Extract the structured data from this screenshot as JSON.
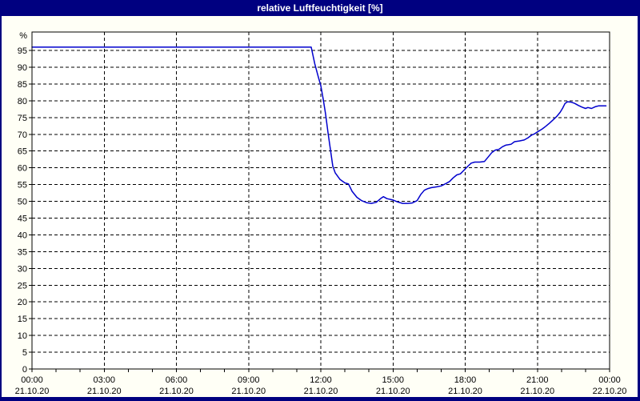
{
  "window": {
    "title": "relative Luftfeuchtigkeit [%]"
  },
  "colors": {
    "frame_background": "#000080",
    "title_text": "#ffffff",
    "panel_background": "#fffff6",
    "plot_background": "#ffffff",
    "grid_and_axis": "#000000",
    "series_line": "#0000cd"
  },
  "chart_data": {
    "type": "line",
    "title": "relative Luftfeuchtigkeit [%]",
    "ylabel": "%",
    "xlabel": "",
    "ylim": [
      0,
      100.5
    ],
    "x_range_hours": [
      0,
      24
    ],
    "grid": "dashed",
    "legend": "none",
    "y_ticks": [
      0,
      5,
      10,
      15,
      20,
      25,
      30,
      35,
      40,
      45,
      50,
      55,
      60,
      65,
      70,
      75,
      80,
      85,
      90,
      95
    ],
    "minor_x_tick_every_hours": 1,
    "x_ticks": [
      {
        "hour": 0,
        "time": "00:00",
        "date": "21.10.20"
      },
      {
        "hour": 3,
        "time": "03:00",
        "date": "21.10.20"
      },
      {
        "hour": 6,
        "time": "06:00",
        "date": "21.10.20"
      },
      {
        "hour": 9,
        "time": "09:00",
        "date": "21.10.20"
      },
      {
        "hour": 12,
        "time": "12:00",
        "date": "21.10.20"
      },
      {
        "hour": 15,
        "time": "15:00",
        "date": "21.10.20"
      },
      {
        "hour": 18,
        "time": "18:00",
        "date": "21.10.20"
      },
      {
        "hour": 21,
        "time": "21:00",
        "date": "21.10.20"
      },
      {
        "hour": 24,
        "time": "00:00",
        "date": "22.10.20"
      }
    ],
    "series": [
      {
        "name": "relative Luftfeuchtigkeit",
        "color": "#0000cd",
        "points": [
          [
            0,
            96
          ],
          [
            1,
            96
          ],
          [
            2,
            96
          ],
          [
            3,
            96
          ],
          [
            4,
            96
          ],
          [
            5,
            96
          ],
          [
            6,
            96
          ],
          [
            7,
            96
          ],
          [
            8,
            96
          ],
          [
            9,
            96
          ],
          [
            10,
            96
          ],
          [
            11,
            96
          ],
          [
            11.6,
            96
          ],
          [
            11.75,
            91
          ],
          [
            11.9,
            87
          ],
          [
            12.0,
            84.5
          ],
          [
            12.1,
            80.5
          ],
          [
            12.2,
            76
          ],
          [
            12.3,
            70.5
          ],
          [
            12.4,
            65.5
          ],
          [
            12.5,
            60.5
          ],
          [
            12.6,
            58.5
          ],
          [
            12.8,
            56.5
          ],
          [
            13.0,
            55.5
          ],
          [
            13.15,
            55.2
          ],
          [
            13.3,
            53
          ],
          [
            13.5,
            51.2
          ],
          [
            13.7,
            50.2
          ],
          [
            13.9,
            49.6
          ],
          [
            14.1,
            49.4
          ],
          [
            14.3,
            49.7
          ],
          [
            14.5,
            50.9
          ],
          [
            14.6,
            51.4
          ],
          [
            14.75,
            50.8
          ],
          [
            15.0,
            50.4
          ],
          [
            15.2,
            49.8
          ],
          [
            15.4,
            49.4
          ],
          [
            15.6,
            49.4
          ],
          [
            15.8,
            49.5
          ],
          [
            16.0,
            50.2
          ],
          [
            16.15,
            52
          ],
          [
            16.3,
            53.3
          ],
          [
            16.45,
            53.8
          ],
          [
            16.6,
            54.1
          ],
          [
            16.8,
            54.3
          ],
          [
            17.0,
            54.6
          ],
          [
            17.2,
            55.3
          ],
          [
            17.35,
            55.9
          ],
          [
            17.5,
            57
          ],
          [
            17.65,
            57.9
          ],
          [
            17.8,
            58.2
          ],
          [
            17.95,
            59.3
          ],
          [
            18.1,
            60.4
          ],
          [
            18.25,
            61.4
          ],
          [
            18.4,
            61.7
          ],
          [
            18.6,
            61.7
          ],
          [
            18.8,
            61.9
          ],
          [
            18.95,
            63.2
          ],
          [
            19.1,
            64.5
          ],
          [
            19.25,
            65.3
          ],
          [
            19.4,
            65.5
          ],
          [
            19.55,
            66.3
          ],
          [
            19.7,
            66.8
          ],
          [
            19.9,
            67
          ],
          [
            20.05,
            67.8
          ],
          [
            20.25,
            68
          ],
          [
            20.45,
            68.3
          ],
          [
            20.6,
            68.9
          ],
          [
            20.75,
            69.7
          ],
          [
            20.9,
            70.2
          ],
          [
            21.0,
            70.7
          ],
          [
            21.2,
            71.6
          ],
          [
            21.35,
            72.4
          ],
          [
            21.5,
            73.3
          ],
          [
            21.65,
            74.3
          ],
          [
            21.8,
            75.3
          ],
          [
            21.95,
            76.6
          ],
          [
            22.05,
            77.8
          ],
          [
            22.15,
            79.2
          ],
          [
            22.25,
            79.7
          ],
          [
            22.4,
            79.6
          ],
          [
            22.55,
            79.2
          ],
          [
            22.7,
            78.6
          ],
          [
            22.85,
            78.1
          ],
          [
            23.0,
            77.7
          ],
          [
            23.1,
            78
          ],
          [
            23.25,
            77.7
          ],
          [
            23.4,
            78.2
          ],
          [
            23.55,
            78.5
          ],
          [
            23.7,
            78.5
          ],
          [
            23.85,
            78.5
          ]
        ]
      }
    ]
  }
}
